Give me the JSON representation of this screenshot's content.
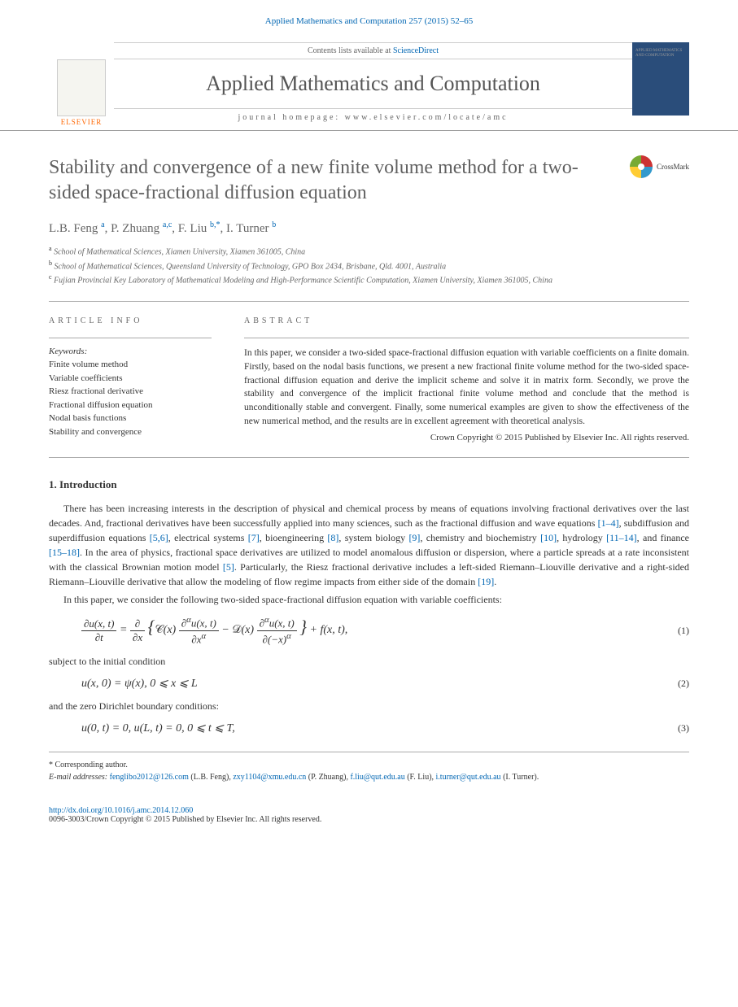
{
  "header": {
    "citation": "Applied Mathematics and Computation 257 (2015) 52–65",
    "contents_prefix": "Contents lists available at ",
    "contents_link": "ScienceDirect",
    "journal_name": "Applied Mathematics and Computation",
    "homepage_prefix": "journal homepage: ",
    "homepage_url": "www.elsevier.com/locate/amc",
    "publisher": "ELSEVIER",
    "cover_text": "APPLIED MATHEMATICS AND COMPUTATION"
  },
  "article": {
    "title": "Stability and convergence of a new finite volume method for a two-sided space-fractional diffusion equation",
    "crossmark": "CrossMark",
    "authors_html": "L.B. Feng <span class='sup'>a</span>, P. Zhuang <span class='sup'>a,c</span>, F. Liu <span class='sup'>b,*</span>, I. Turner <span class='sup'>b</span>",
    "affiliations": [
      {
        "sup": "a",
        "text": "School of Mathematical Sciences, Xiamen University, Xiamen 361005, China"
      },
      {
        "sup": "b",
        "text": "School of Mathematical Sciences, Queensland University of Technology, GPO Box 2434, Brisbane, Qld. 4001, Australia"
      },
      {
        "sup": "c",
        "text": "Fujian Provincial Key Laboratory of Mathematical Modeling and High-Performance Scientific Computation, Xiamen University, Xiamen 361005, China"
      }
    ]
  },
  "info": {
    "label": "ARTICLE INFO",
    "keywords_label": "Keywords:",
    "keywords": [
      "Finite volume method",
      "Variable coefficients",
      "Riesz fractional derivative",
      "Fractional diffusion equation",
      "Nodal basis functions",
      "Stability and convergence"
    ]
  },
  "abstract": {
    "label": "ABSTRACT",
    "text": "In this paper, we consider a two-sided space-fractional diffusion equation with variable coefficients on a finite domain. Firstly, based on the nodal basis functions, we present a new fractional finite volume method for the two-sided space-fractional diffusion equation and derive the implicit scheme and solve it in matrix form. Secondly, we prove the stability and convergence of the implicit fractional finite volume method and conclude that the method is unconditionally stable and convergent. Finally, some numerical examples are given to show the effectiveness of the new numerical method, and the results are in excellent agreement with theoretical analysis.",
    "copyright": "Crown Copyright © 2015 Published by Elsevier Inc. All rights reserved."
  },
  "sections": {
    "intro_heading": "1. Introduction",
    "para1": "There has been increasing interests in the description of physical and chemical process by means of equations involving fractional derivatives over the last decades. And, fractional derivatives have been successfully applied into many sciences, such as the fractional diffusion and wave equations [1–4], subdiffusion and superdiffusion equations [5,6], electrical systems [7], bioengineering [8], system biology [9], chemistry and biochemistry [10], hydrology [11–14], and finance [15–18]. In the area of physics, fractional space derivatives are utilized to model anomalous diffusion or dispersion, where a particle spreads at a rate inconsistent with the classical Brownian motion model [5]. Particularly, the Riesz fractional derivative includes a left-sided Riemann–Liouville derivative and a right-sided Riemann–Liouville derivative that allow the modeling of flow regime impacts from either side of the domain [19].",
    "para2": "In this paper, we consider the following two-sided space-fractional diffusion equation with variable coefficients:",
    "eq1_label": "(1)",
    "eq2_pre": "subject to the initial condition",
    "eq2_text": "u(x, 0) = ψ(x),    0 ⩽ x ⩽ L",
    "eq2_label": "(2)",
    "eq3_pre": "and the zero Dirichlet boundary conditions:",
    "eq3_text": "u(0, t) = 0,    u(L, t) = 0,    0 ⩽ t ⩽ T,",
    "eq3_label": "(3)"
  },
  "footer": {
    "corresponding": "* Corresponding author.",
    "email_label": "E-mail addresses: ",
    "emails": [
      {
        "addr": "fenglibo2012@126.com",
        "name": "(L.B. Feng)"
      },
      {
        "addr": "zxy1104@xmu.edu.cn",
        "name": "(P. Zhuang)"
      },
      {
        "addr": "f.liu@qut.edu.au",
        "name": "(F. Liu)"
      },
      {
        "addr": "i.turner@qut.edu.au",
        "name": "(I. Turner)"
      }
    ],
    "doi": "http://dx.doi.org/10.1016/j.amc.2014.12.060",
    "issn_line": "0096-3003/Crown Copyright © 2015 Published by Elsevier Inc. All rights reserved."
  },
  "links": {
    "refs1": "[1–4]",
    "refs2": "[5,6]",
    "refs3": "[7]",
    "refs4": "[8]",
    "refs5": "[9]",
    "refs6": "[10]",
    "refs7": "[11–14]",
    "refs8": "[15–18]",
    "refs9": "[5]",
    "refs10": "[19]"
  },
  "colors": {
    "link": "#0066b3",
    "title_gray": "#606060",
    "elsevier_orange": "#ff6600",
    "cover_blue": "#2a4d7a"
  }
}
